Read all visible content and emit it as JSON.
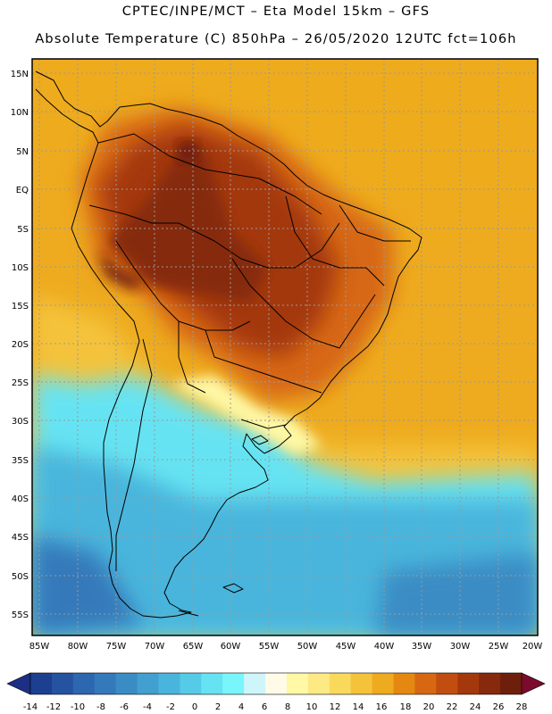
{
  "header": {
    "line1": "CPTEC/INPE/MCT –  Eta Model 15km – GFS",
    "line2": "Absolute Temperature (C) 850hPa – 26/05/2020 12UTC fct=106h"
  },
  "map": {
    "lat_labels": [
      "15N",
      "10N",
      "5N",
      "EQ",
      "5S",
      "10S",
      "15S",
      "20S",
      "25S",
      "30S",
      "35S",
      "40S",
      "45S",
      "50S",
      "55S"
    ],
    "lon_labels": [
      "85W",
      "80W",
      "75W",
      "70W",
      "65W",
      "60W",
      "55W",
      "50W",
      "45W",
      "40W",
      "35W",
      "30W",
      "25W",
      "20W"
    ]
  },
  "colorbar": {
    "labels": [
      "-14",
      "-12",
      "-10",
      "-8",
      "-6",
      "-4",
      "-2",
      "0",
      "2",
      "4",
      "6",
      "8",
      "10",
      "12",
      "14",
      "16",
      "18",
      "20",
      "22",
      "24",
      "26",
      "28"
    ],
    "colors": [
      "#1d3f8f",
      "#2553a0",
      "#2c67b0",
      "#3479ba",
      "#3a8cc4",
      "#41a0cf",
      "#49b5dc",
      "#55cbe8",
      "#66e3f2",
      "#79f6fb",
      "#cdf5fa",
      "#fffbe6",
      "#fff8a5",
      "#fdea84",
      "#f9d95c",
      "#f4c33a",
      "#eeab1f",
      "#e58812",
      "#d76712",
      "#c14d10",
      "#a4380d",
      "#86290c",
      "#6e1f0b"
    ],
    "low_color": "#1c2f84",
    "high_color": "#7b0a2c"
  }
}
